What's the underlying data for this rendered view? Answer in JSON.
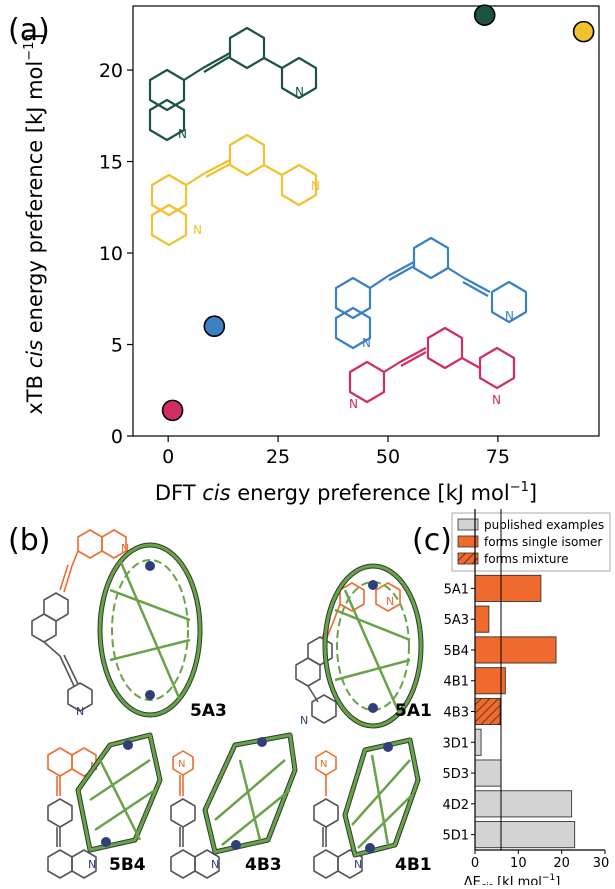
{
  "panels": {
    "a": "(a)",
    "b": "(b)",
    "c": "(c)"
  },
  "colors": {
    "dark_green": "#1c5444",
    "yellow": "#f2c12e",
    "blue": "#3a80c4",
    "crimson": "#d02d60",
    "orange": "#ef6a2c",
    "grey": "#d3d3d3",
    "cage_green": "#6aa24a",
    "cage_dark": "#2a3f2a",
    "nitrogen": "#2f3f7a",
    "ligand_grey": "#6a6a6a"
  },
  "chart_data": [
    {
      "type": "scatter",
      "xlabel_pre": "DFT ",
      "xlabel_em": "cis",
      "xlabel_post": " energy preference [kJ mol",
      "ylabel_pre": "xTB ",
      "ylabel_em": "cis",
      "ylabel_post": " energy preference [kJ mol",
      "unit_sup": "−1",
      "unit_close": "]",
      "xlim": [
        -8,
        98
      ],
      "ylim": [
        0,
        23.5
      ],
      "xticks": [
        0,
        25,
        50,
        75
      ],
      "yticks": [
        0,
        5,
        10,
        15,
        20
      ],
      "grid": false,
      "points": [
        {
          "x": 1,
          "y": 1.4,
          "color": "#d02d60"
        },
        {
          "x": 10.5,
          "y": 6.0,
          "color": "#3a80c4"
        },
        {
          "x": 72,
          "y": 23.0,
          "color": "#1c5444"
        },
        {
          "x": 94.5,
          "y": 22.1,
          "color": "#f2c12e"
        }
      ],
      "structure_labels": [
        "N",
        "N",
        "N",
        "N",
        "N",
        "N",
        "N",
        "N"
      ]
    },
    {
      "type": "bar",
      "orientation": "horizontal",
      "xlabel_pre": "ΔE",
      "xlabel_sub": "cis",
      "xlabel_post": " [kJ mol",
      "unit_sup": "−1",
      "unit_close": "]",
      "xlim": [
        0,
        30
      ],
      "xticks": [
        0,
        10,
        20,
        30
      ],
      "reference_line": 6,
      "legend": [
        {
          "label": "published examples",
          "style": "grey"
        },
        {
          "label": "forms single isomer",
          "style": "orange"
        },
        {
          "label": "forms mixture",
          "style": "hatched"
        }
      ],
      "legend_position": "top",
      "categories": [
        "5A1",
        "5A3",
        "5B4",
        "4B1",
        "4B3",
        "3D1",
        "5D3",
        "4D2",
        "5D1"
      ],
      "values": [
        15.2,
        3.2,
        18.7,
        7.0,
        5.8,
        1.4,
        6.0,
        22.3,
        23.0
      ],
      "styles": [
        "orange",
        "orange",
        "orange",
        "orange",
        "hatched",
        "grey",
        "grey",
        "grey",
        "grey"
      ]
    }
  ],
  "cages": [
    {
      "code": "5A3"
    },
    {
      "code": "5A1"
    },
    {
      "code": "5B4"
    },
    {
      "code": "4B3"
    },
    {
      "code": "4B1"
    }
  ],
  "ligand_labels": [
    "N",
    "N",
    "N",
    "N",
    "N",
    "N",
    "N",
    "N",
    "N",
    "N"
  ]
}
